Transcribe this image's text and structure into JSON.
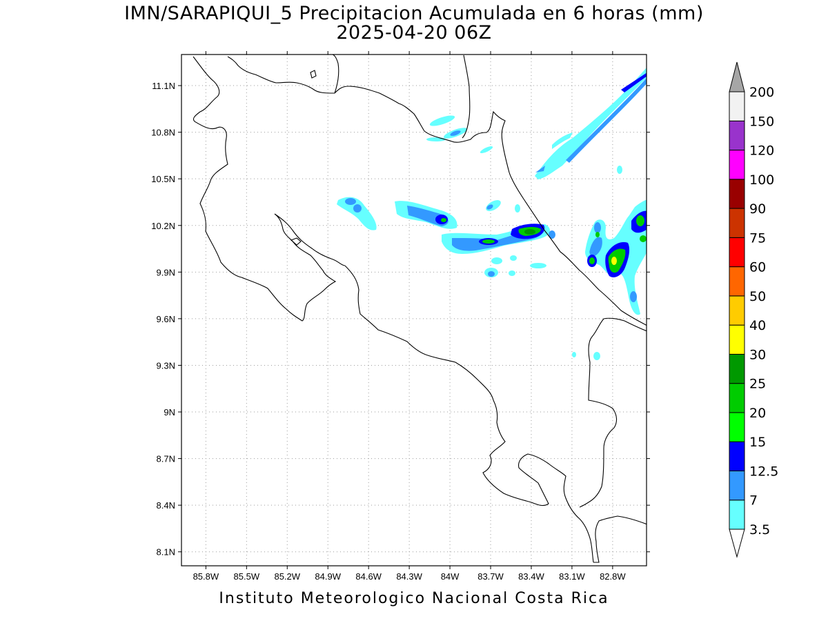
{
  "title": {
    "line1": "IMN/SARAPIQUI_5 Precipitacion Acumulada en 6 horas (mm)",
    "line2": "2025-04-20 06Z"
  },
  "footer": "Instituto Meteorologico Nacional Costa Rica",
  "map": {
    "lon_range": [
      -85.98,
      -82.55
    ],
    "lat_range": [
      8.01,
      11.3
    ],
    "lat_ticks": [
      "11.1N",
      "10.8N",
      "10.5N",
      "10.2N",
      "9.9N",
      "9.6N",
      "9.3N",
      "9N",
      "8.7N",
      "8.4N",
      "8.1N"
    ],
    "lon_ticks": [
      "85.8W",
      "85.5W",
      "85.2W",
      "84.9W",
      "84.6W",
      "84.3W",
      "84W",
      "83.7W",
      "83.4W",
      "83.1W",
      "82.8W"
    ],
    "grid": true
  },
  "colorbar": {
    "labels": [
      "3.5",
      "7",
      "12.5",
      "15",
      "20",
      "25",
      "30",
      "40",
      "50",
      "60",
      "75",
      "90",
      "100",
      "120",
      "150",
      "200"
    ],
    "colors": [
      "#66ffff",
      "#3399ff",
      "#0000ff",
      "#00ff00",
      "#00cc00",
      "#009900",
      "#ffff00",
      "#ffcc00",
      "#ff6600",
      "#ff0000",
      "#cc3300",
      "#990000",
      "#ff00ff",
      "#9933cc",
      "#f2f2f2",
      "#a6a6a6"
    ]
  }
}
